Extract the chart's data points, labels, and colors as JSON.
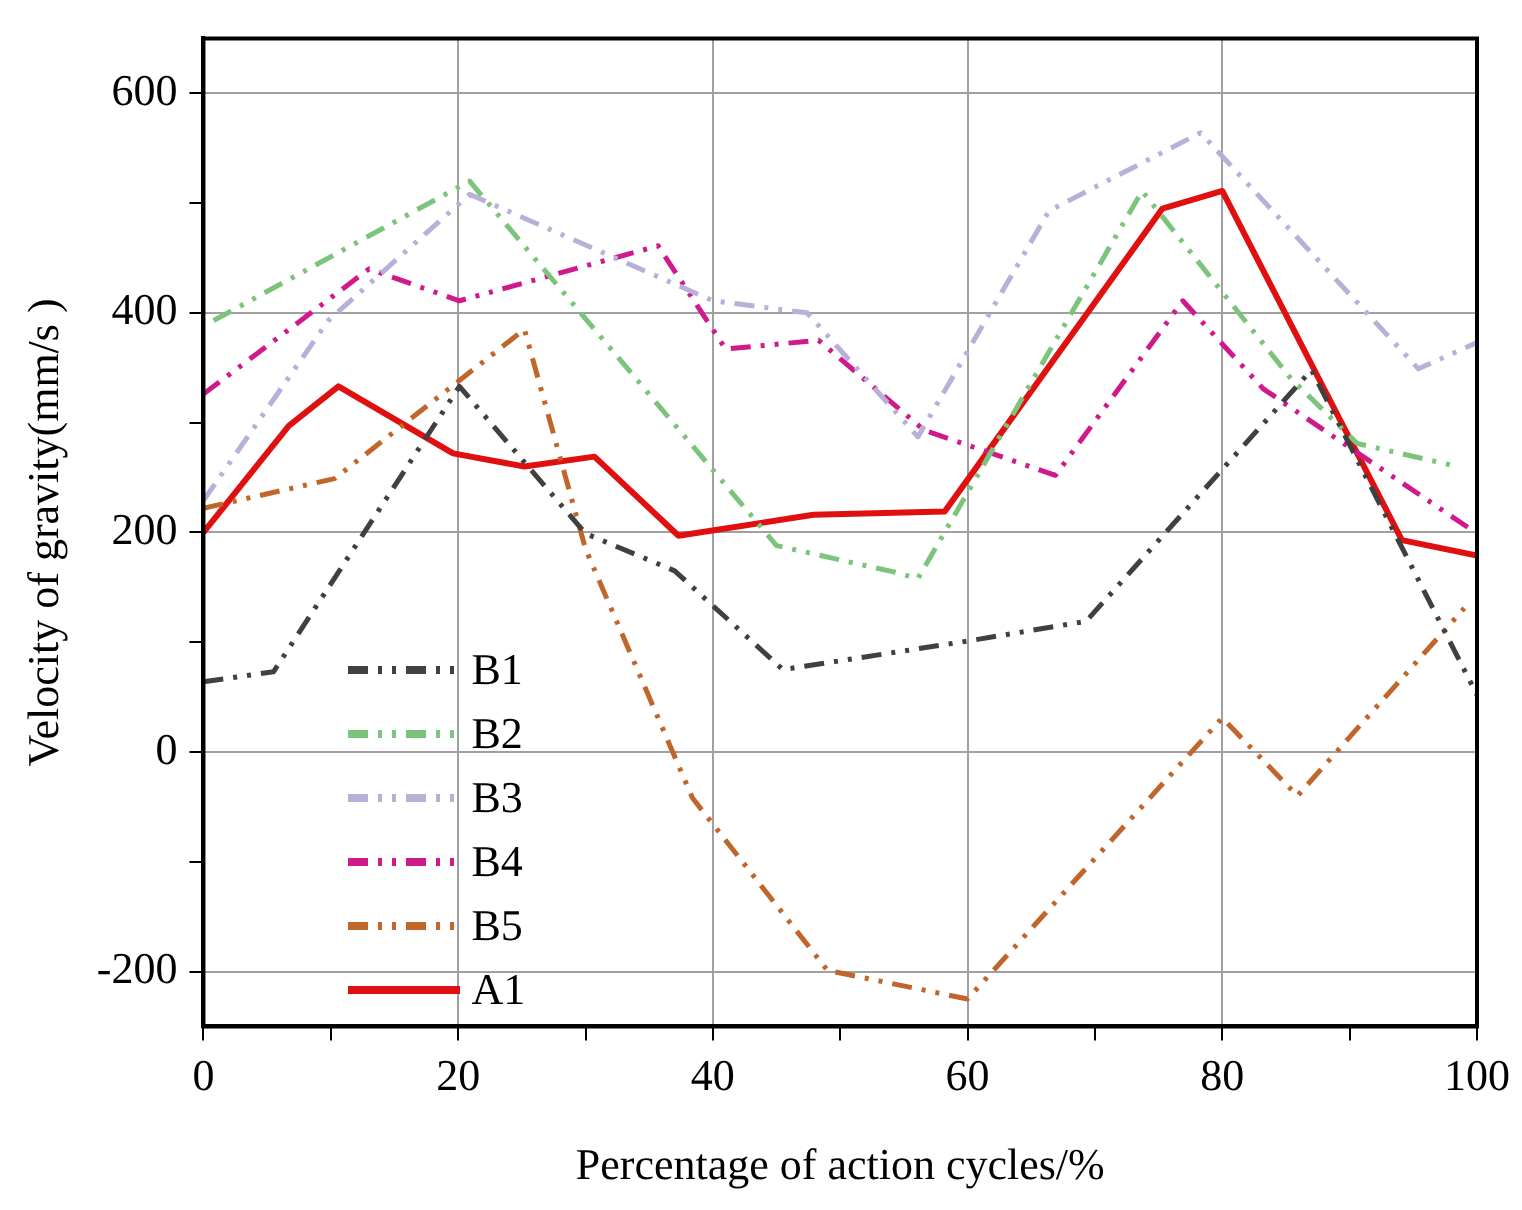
{
  "chart_data": {
    "type": "line",
    "xlabel": "Percentage of action cycles/%",
    "ylabel": "Velocity of gravity(mm/s )",
    "xlim": [
      0,
      100
    ],
    "xticks": [
      0,
      {
        "value": 10,
        "label": null
      },
      20,
      {
        "value": 30,
        "label": null
      },
      40,
      {
        "value": 50,
        "label": null
      },
      60,
      {
        "value": 70,
        "label": null
      },
      80,
      {
        "value": 90,
        "label": null
      },
      100
    ],
    "ylim": [
      -250,
      650
    ],
    "yticks": [
      -200,
      {
        "value": -100,
        "label": null
      },
      0,
      {
        "value": 100,
        "label": null
      },
      200,
      {
        "value": 300,
        "label": null
      },
      400,
      {
        "value": 500,
        "label": null
      },
      600
    ],
    "grid": true,
    "legend": "bottom left",
    "marker": "none",
    "series": [
      {
        "name": "B1",
        "color": "#404040",
        "line_style": "dashed",
        "x": [
          0,
          5.5,
          20.1,
          30,
          37,
          45.5,
          60,
          69.3,
          87,
          100
        ],
        "values": [
          64,
          73,
          333,
          199,
          165,
          75,
          101,
          119,
          348,
          52
        ]
      },
      {
        "name": "B2",
        "color": "#7cc47c",
        "line_style": "dashed",
        "x": [
          0.8,
          20.9,
          45,
          54.2,
          56.1,
          73.7,
          85.4,
          90.6,
          98.1
        ],
        "values": [
          393,
          520,
          188,
          164,
          158,
          511,
          340,
          281,
          261
        ]
      },
      {
        "name": "B3",
        "color": "#b8b0d8",
        "line_style": "dashed",
        "x": [
          0,
          9.8,
          20.9,
          40,
          47.4,
          56.1,
          66.4,
          78.3,
          95.4,
          100
        ],
        "values": [
          229,
          393,
          508,
          411,
          400,
          287,
          493,
          564,
          349,
          373
        ]
      },
      {
        "name": "B4",
        "color": "#d0198a",
        "line_style": "dashed",
        "x": [
          0,
          13,
          20.1,
          35.7,
          41,
          48.3,
          56.6,
          66.9,
          76.9,
          83.2,
          88,
          100
        ],
        "values": [
          326,
          440,
          411,
          461,
          367,
          375,
          293,
          252,
          411,
          331,
          293,
          199
        ]
      },
      {
        "name": "B5",
        "color": "#c0662a",
        "line_style": "dashed",
        "x": [
          0,
          10.3,
          25.2,
          30,
          38.4,
          49,
          60,
          80,
          85.9,
          99
        ],
        "values": [
          222,
          249,
          385,
          185,
          -42,
          -199,
          -225,
          31,
          -40,
          131
        ]
      },
      {
        "name": "A1",
        "color": "#e01010",
        "line_style": "solid",
        "x": [
          0,
          6.7,
          10.6,
          19.6,
          25.2,
          30.7,
          37.3,
          47.9,
          58.2,
          75.3,
          80,
          94.1,
          100
        ],
        "values": [
          200,
          297,
          333,
          272,
          260,
          269,
          197,
          216,
          219,
          495,
          511,
          193,
          179
        ]
      }
    ]
  }
}
